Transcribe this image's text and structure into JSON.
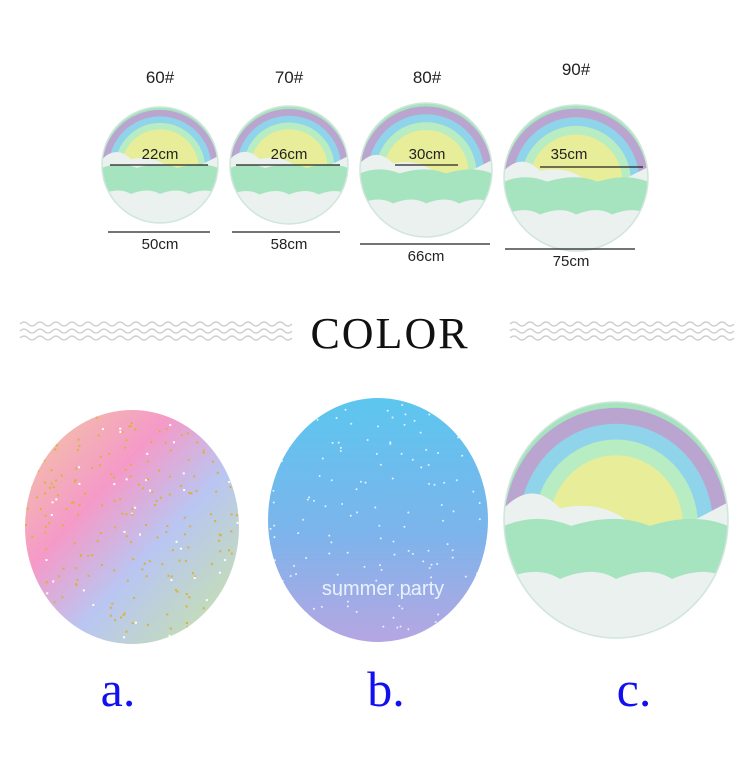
{
  "sizes": [
    {
      "model": "60#",
      "inner": "22cm",
      "outer": "50cm"
    },
    {
      "model": "70#",
      "inner": "26cm",
      "outer": "58cm"
    },
    {
      "model": "80#",
      "inner": "30cm",
      "outer": "66cm"
    },
    {
      "model": "90#",
      "inner": "35cm",
      "outer": "75cm"
    }
  ],
  "section_title": "COLOR",
  "variants": [
    {
      "label": "a.",
      "style": "glitter pastel"
    },
    {
      "label": "b.",
      "style": "blue snowflake",
      "print": "summer party"
    },
    {
      "label": "c.",
      "style": "rainbow cloud"
    }
  ],
  "colors": {
    "label_blue": "#1010f0",
    "rainbow": [
      "#b9a5cf",
      "#8fd4ea",
      "#b8ecc3",
      "#e8ed9a"
    ],
    "cloud": "#eaf1ee",
    "mint": "#a6e3bf"
  }
}
